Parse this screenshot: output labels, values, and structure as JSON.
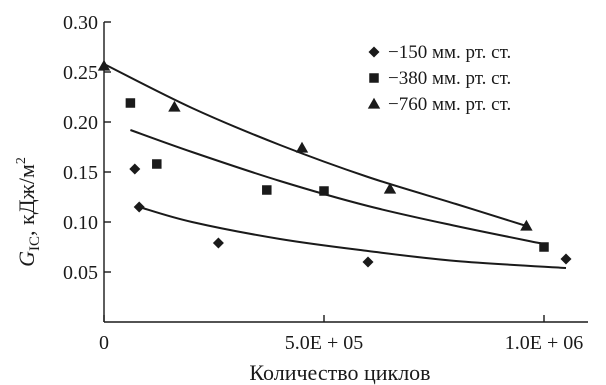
{
  "chart_data": {
    "type": "scatter",
    "xlabel": "Количество циклов",
    "ylabel_main": "G",
    "ylabel_sub": "IC",
    "ylabel_rest": ", кДж/м",
    "ylabel_sup": "2",
    "xlim": [
      0,
      1100000
    ],
    "ylim": [
      0,
      0.3
    ],
    "x_ticks": [
      {
        "value": 0,
        "label": "0"
      },
      {
        "value": 500000,
        "label": "5.0E + 05"
      },
      {
        "value": 1000000,
        "label": "1.0E + 06"
      }
    ],
    "y_ticks": [
      {
        "value": 0.05,
        "label": "0.05"
      },
      {
        "value": 0.1,
        "label": "0.10"
      },
      {
        "value": 0.15,
        "label": "0.15"
      },
      {
        "value": 0.2,
        "label": "0.20"
      },
      {
        "value": 0.25,
        "label": "0.25"
      },
      {
        "value": 0.3,
        "label": "0.30"
      }
    ],
    "legend_position": "top-right",
    "series": [
      {
        "name": "−150 мм. рт. ст.",
        "marker": "diamond",
        "points": [
          {
            "x": 70000,
            "y": 0.153
          },
          {
            "x": 80000,
            "y": 0.115
          },
          {
            "x": 260000,
            "y": 0.079
          },
          {
            "x": 600000,
            "y": 0.06
          },
          {
            "x": 1050000,
            "y": 0.063
          }
        ],
        "trend": [
          [
            80000,
            0.115
          ],
          [
            200000,
            0.1
          ],
          [
            400000,
            0.083
          ],
          [
            600000,
            0.071
          ],
          [
            800000,
            0.061
          ],
          [
            1050000,
            0.054
          ]
        ]
      },
      {
        "name": "−380 мм. рт. ст.",
        "marker": "square",
        "points": [
          {
            "x": 60000,
            "y": 0.219
          },
          {
            "x": 120000,
            "y": 0.158
          },
          {
            "x": 370000,
            "y": 0.132
          },
          {
            "x": 500000,
            "y": 0.131
          },
          {
            "x": 1000000,
            "y": 0.075
          }
        ],
        "trend": [
          [
            60000,
            0.192
          ],
          [
            200000,
            0.17
          ],
          [
            400000,
            0.141
          ],
          [
            600000,
            0.116
          ],
          [
            800000,
            0.096
          ],
          [
            1000000,
            0.078
          ]
        ]
      },
      {
        "name": "−760 мм. рт. ст.",
        "marker": "triangle",
        "points": [
          {
            "x": 0,
            "y": 0.256
          },
          {
            "x": 160000,
            "y": 0.215
          },
          {
            "x": 450000,
            "y": 0.174
          },
          {
            "x": 650000,
            "y": 0.133
          },
          {
            "x": 960000,
            "y": 0.096
          }
        ],
        "trend": [
          [
            0,
            0.258
          ],
          [
            200000,
            0.214
          ],
          [
            400000,
            0.177
          ],
          [
            600000,
            0.145
          ],
          [
            800000,
            0.118
          ],
          [
            960000,
            0.096
          ]
        ]
      }
    ]
  }
}
